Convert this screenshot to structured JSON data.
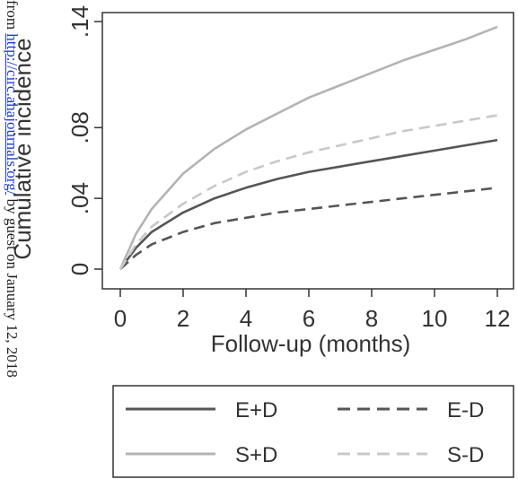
{
  "chart_data": {
    "type": "line",
    "ylabel": "Cumulative incidence",
    "xlabel": "Follow-up (months)",
    "xlim": [
      0,
      12
    ],
    "ylim": [
      0,
      0.14
    ],
    "x_ticks": [
      0,
      2,
      4,
      6,
      8,
      10,
      12
    ],
    "x_tick_labels": [
      "0",
      "2",
      "4",
      "6",
      "8",
      "10",
      "12"
    ],
    "y_ticks": [
      0,
      0.04,
      0.08,
      0.14
    ],
    "y_tick_labels": [
      "0",
      ".04",
      ".08",
      ".14"
    ],
    "grid": false,
    "legend_position": "bottom",
    "x": [
      0,
      0.5,
      1,
      2,
      3,
      4,
      5,
      6,
      7,
      8,
      9,
      10,
      11,
      12
    ],
    "series": [
      {
        "name": "E+D",
        "color": "#555555",
        "dash": "solid",
        "values": [
          0,
          0.012,
          0.021,
          0.032,
          0.04,
          0.046,
          0.051,
          0.055,
          0.058,
          0.061,
          0.064,
          0.067,
          0.07,
          0.073
        ]
      },
      {
        "name": "E-D",
        "color": "#555555",
        "dash": "dashed",
        "values": [
          0,
          0.008,
          0.014,
          0.021,
          0.026,
          0.029,
          0.032,
          0.034,
          0.036,
          0.038,
          0.04,
          0.042,
          0.044,
          0.046
        ]
      },
      {
        "name": "S+D",
        "color": "#b3b3b3",
        "dash": "solid",
        "values": [
          0,
          0.02,
          0.034,
          0.054,
          0.068,
          0.079,
          0.088,
          0.097,
          0.104,
          0.111,
          0.118,
          0.124,
          0.13,
          0.137
        ]
      },
      {
        "name": "S-D",
        "color": "#c8c8c8",
        "dash": "dashed",
        "values": [
          0,
          0.014,
          0.024,
          0.037,
          0.047,
          0.055,
          0.061,
          0.066,
          0.07,
          0.074,
          0.078,
          0.081,
          0.084,
          0.087
        ]
      }
    ]
  },
  "watermark": {
    "prefix": "from ",
    "link": "http://circ.ahajournals.org/",
    "suffix": " by guest on January 12, 2018"
  }
}
